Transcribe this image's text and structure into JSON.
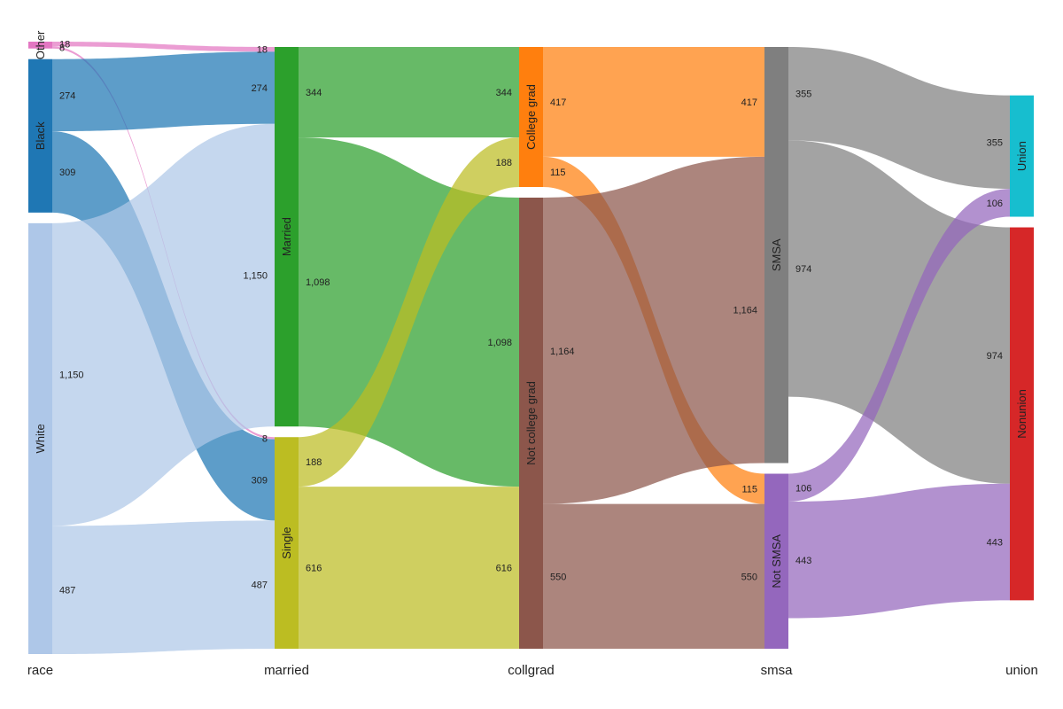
{
  "chart_data": {
    "type": "sankey",
    "axes": [
      "race",
      "married",
      "collgrad",
      "smsa",
      "union"
    ],
    "nodes": [
      {
        "id": "race.Other",
        "axis": 0,
        "name": "Other",
        "color": "#e377c2"
      },
      {
        "id": "race.Black",
        "axis": 0,
        "name": "Black",
        "color": "#1f77b4"
      },
      {
        "id": "race.White",
        "axis": 0,
        "name": "White",
        "color": "#aec7e8"
      },
      {
        "id": "married.Married",
        "axis": 1,
        "name": "Married",
        "color": "#2ca02c"
      },
      {
        "id": "married.Single",
        "axis": 1,
        "name": "Single",
        "color": "#bcbd22"
      },
      {
        "id": "collgrad.College grad",
        "axis": 2,
        "name": "College grad",
        "color": "#ff7f0e"
      },
      {
        "id": "collgrad.Not college grad",
        "axis": 2,
        "name": "Not college grad",
        "color": "#8c564b"
      },
      {
        "id": "smsa.SMSA",
        "axis": 3,
        "name": "SMSA",
        "color": "#7f7f7f"
      },
      {
        "id": "smsa.Not SMSA",
        "axis": 3,
        "name": "Not SMSA",
        "color": "#9467bd"
      },
      {
        "id": "union.Union",
        "axis": 4,
        "name": "Union",
        "color": "#17becf"
      },
      {
        "id": "union.Nonunion",
        "axis": 4,
        "name": "Nonunion",
        "color": "#d62728"
      }
    ],
    "links": [
      {
        "source": "race.Other",
        "target": "married.Married",
        "value": 18,
        "label": "18"
      },
      {
        "source": "race.Other",
        "target": "married.Single",
        "value": 8,
        "label": "8"
      },
      {
        "source": "race.Black",
        "target": "married.Married",
        "value": 274,
        "label": "274"
      },
      {
        "source": "race.Black",
        "target": "married.Single",
        "value": 309,
        "label": "309"
      },
      {
        "source": "race.White",
        "target": "married.Married",
        "value": 1150,
        "label": "1,150"
      },
      {
        "source": "race.White",
        "target": "married.Single",
        "value": 487,
        "label": "487"
      },
      {
        "source": "married.Married",
        "target": "collgrad.College grad",
        "value": 344,
        "label": "344"
      },
      {
        "source": "married.Married",
        "target": "collgrad.Not college grad",
        "value": 1098,
        "label": "1,098"
      },
      {
        "source": "married.Single",
        "target": "collgrad.College grad",
        "value": 188,
        "label": "188"
      },
      {
        "source": "married.Single",
        "target": "collgrad.Not college grad",
        "value": 616,
        "label": "616"
      },
      {
        "source": "collgrad.College grad",
        "target": "smsa.SMSA",
        "value": 417,
        "label": "417"
      },
      {
        "source": "collgrad.College grad",
        "target": "smsa.Not SMSA",
        "value": 115,
        "label": "115"
      },
      {
        "source": "collgrad.Not college grad",
        "target": "smsa.SMSA",
        "value": 1164,
        "label": "1,164"
      },
      {
        "source": "collgrad.Not college grad",
        "target": "smsa.Not SMSA",
        "value": 550,
        "label": "550"
      },
      {
        "source": "smsa.SMSA",
        "target": "union.Union",
        "value": 355,
        "label": "355"
      },
      {
        "source": "smsa.SMSA",
        "target": "union.Nonunion",
        "value": 974,
        "label": "974"
      },
      {
        "source": "smsa.Not SMSA",
        "target": "union.Union",
        "value": 106,
        "label": "106"
      },
      {
        "source": "smsa.Not SMSA",
        "target": "union.Nonunion",
        "value": 443,
        "label": "443"
      }
    ]
  }
}
